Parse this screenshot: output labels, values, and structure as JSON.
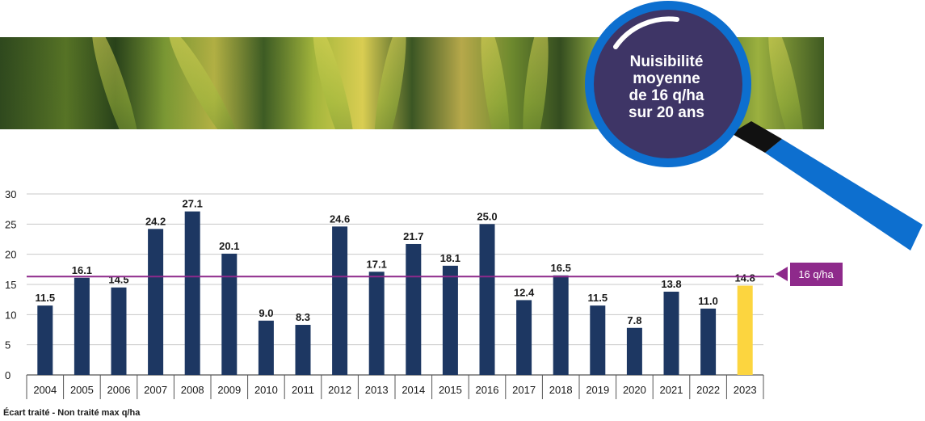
{
  "callout": {
    "line1": "Nuisibilité",
    "line2": "moyenne",
    "line3": "de 16 q/ha",
    "line4": "sur 20 ans"
  },
  "reference_label": "16 q/ha",
  "colors": {
    "bar": "#1d3762",
    "highlight_bar": "#fcd53f",
    "reference_line": "#8e2a8b",
    "callout_fill": "#3e3566",
    "callout_ring": "#0d6fcf",
    "handle": "#0d6fcf"
  },
  "chart_data": {
    "type": "bar",
    "categories": [
      "2004",
      "2005",
      "2006",
      "2007",
      "2008",
      "2009",
      "2010",
      "2011",
      "2012",
      "2013",
      "2014",
      "2015",
      "2016",
      "2017",
      "2018",
      "2019",
      "2020",
      "2021",
      "2022",
      "2023"
    ],
    "values": [
      11.5,
      16.1,
      14.5,
      24.2,
      27.1,
      20.1,
      9.0,
      8.3,
      24.6,
      17.1,
      21.7,
      18.1,
      25.0,
      12.4,
      16.5,
      11.5,
      7.8,
      13.8,
      11.0,
      14.8
    ],
    "data_labels": [
      "11.5",
      "16.1",
      "14.5",
      "24.2",
      "27.1",
      "20.1",
      "9.0",
      "8.3",
      "24.6",
      "17.1",
      "21.7",
      "18.1",
      "25.0",
      "12.4",
      "16.5",
      "11.5",
      "7.8",
      "13.8",
      "11.0",
      "14.8"
    ],
    "highlight_category": "2023",
    "reference_value": 16.3,
    "y_ticks": [
      "0",
      "5",
      "10",
      "15",
      "20",
      "25",
      "30"
    ],
    "ylim": [
      0,
      30
    ],
    "grid": true,
    "xlabel": "Écart traité - Non traité max q/ha",
    "ylabel": ""
  }
}
